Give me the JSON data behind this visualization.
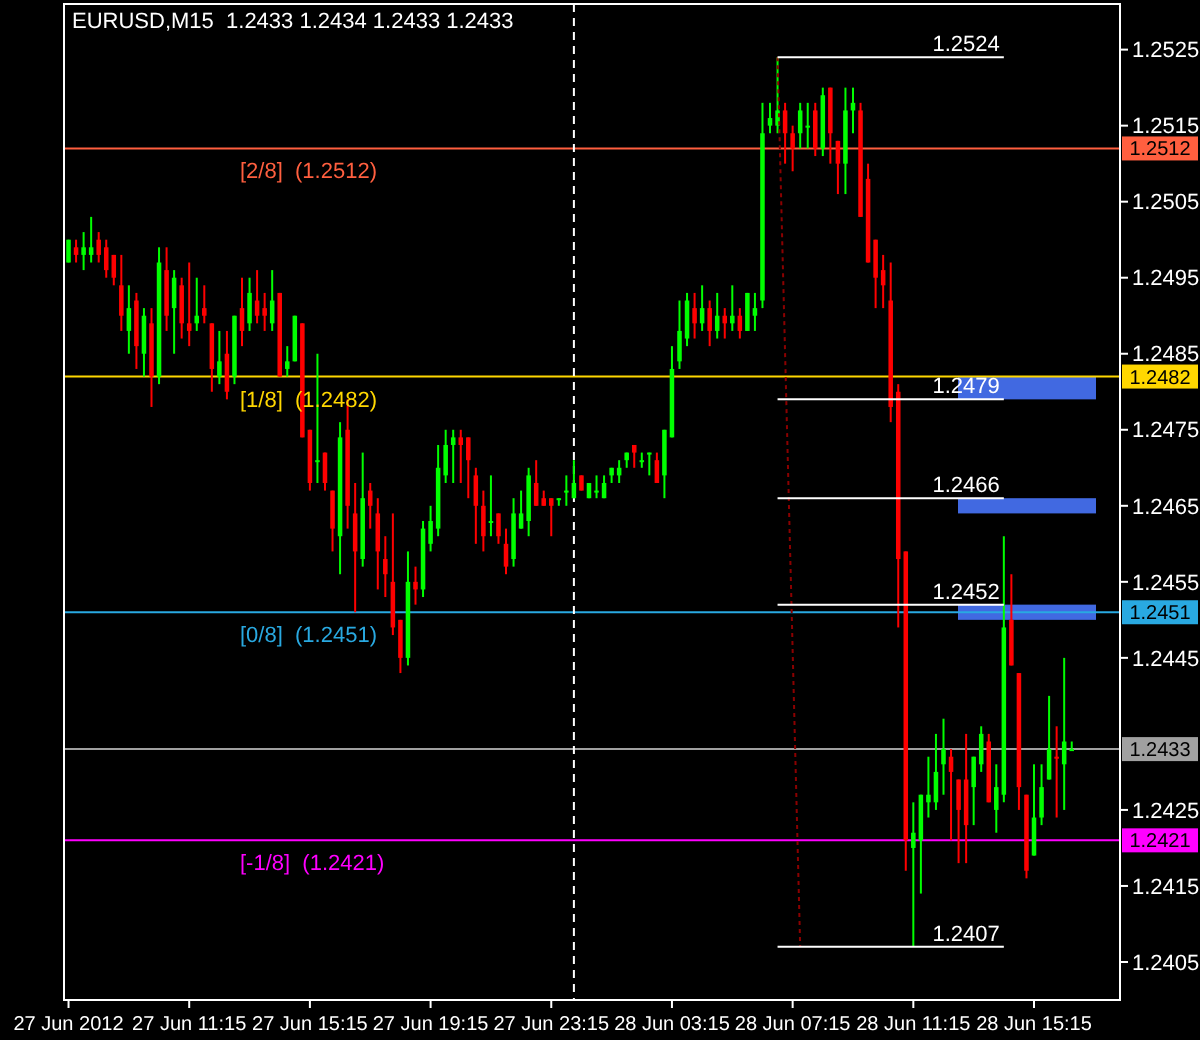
{
  "chart_data": {
    "type": "candlestick",
    "title": "EURUSD,M15  1.2433 1.2434 1.2433 1.2433",
    "x": [
      "2012-06-27T07:15",
      "2012-06-27T07:30",
      "2012-06-27T07:45",
      "2012-06-27T08:00",
      "2012-06-27T08:15",
      "2012-06-27T08:30",
      "2012-06-27T08:45",
      "2012-06-27T09:00",
      "2012-06-27T09:15",
      "2012-06-27T09:30",
      "2012-06-27T09:45",
      "2012-06-27T10:00",
      "2012-06-27T10:15",
      "2012-06-27T10:30",
      "2012-06-27T10:45",
      "2012-06-27T11:00",
      "2012-06-27T11:15",
      "2012-06-27T11:30",
      "2012-06-27T11:45",
      "2012-06-27T12:00",
      "2012-06-27T12:15",
      "2012-06-27T12:30",
      "2012-06-27T12:45",
      "2012-06-27T13:00",
      "2012-06-27T13:15",
      "2012-06-27T13:30",
      "2012-06-27T13:45",
      "2012-06-27T14:00",
      "2012-06-27T14:15",
      "2012-06-27T14:30",
      "2012-06-27T14:45",
      "2012-06-27T15:00",
      "2012-06-27T15:15",
      "2012-06-27T15:30",
      "2012-06-27T15:45",
      "2012-06-27T16:00",
      "2012-06-27T16:15",
      "2012-06-27T16:30",
      "2012-06-27T16:45",
      "2012-06-27T17:00",
      "2012-06-27T17:15",
      "2012-06-27T17:30",
      "2012-06-27T17:45",
      "2012-06-27T18:00",
      "2012-06-27T18:15",
      "2012-06-27T18:30",
      "2012-06-27T18:45",
      "2012-06-27T19:00",
      "2012-06-27T19:15",
      "2012-06-27T19:30",
      "2012-06-27T19:45",
      "2012-06-27T20:00",
      "2012-06-27T20:15",
      "2012-06-27T20:30",
      "2012-06-27T20:45",
      "2012-06-27T21:00",
      "2012-06-27T21:15",
      "2012-06-27T21:30",
      "2012-06-27T21:45",
      "2012-06-27T22:00",
      "2012-06-27T22:15",
      "2012-06-27T22:30",
      "2012-06-27T22:45",
      "2012-06-27T23:00",
      "2012-06-27T23:15",
      "2012-06-27T23:30",
      "2012-06-27T23:45",
      "2012-06-28T00:00",
      "2012-06-28T00:15",
      "2012-06-28T00:30",
      "2012-06-28T00:45",
      "2012-06-28T01:00",
      "2012-06-28T01:15",
      "2012-06-28T01:30",
      "2012-06-28T01:45",
      "2012-06-28T02:00",
      "2012-06-28T02:15",
      "2012-06-28T02:30",
      "2012-06-28T02:45",
      "2012-06-28T03:00",
      "2012-06-28T03:15",
      "2012-06-28T03:30",
      "2012-06-28T03:45",
      "2012-06-28T04:00",
      "2012-06-28T04:15",
      "2012-06-28T04:30",
      "2012-06-28T04:45",
      "2012-06-28T05:00",
      "2012-06-28T05:15",
      "2012-06-28T05:30",
      "2012-06-28T05:45",
      "2012-06-28T06:00",
      "2012-06-28T06:15",
      "2012-06-28T06:30",
      "2012-06-28T06:45",
      "2012-06-28T07:00",
      "2012-06-28T07:15",
      "2012-06-28T07:30",
      "2012-06-28T07:45",
      "2012-06-28T08:00",
      "2012-06-28T08:15",
      "2012-06-28T08:30",
      "2012-06-28T08:45",
      "2012-06-28T09:00",
      "2012-06-28T09:15",
      "2012-06-28T09:30",
      "2012-06-28T09:45",
      "2012-06-28T10:00",
      "2012-06-28T10:15",
      "2012-06-28T10:30",
      "2012-06-28T10:45",
      "2012-06-28T11:00",
      "2012-06-28T11:15",
      "2012-06-28T11:30",
      "2012-06-28T11:45",
      "2012-06-28T12:00",
      "2012-06-28T12:15",
      "2012-06-28T12:30",
      "2012-06-28T12:45",
      "2012-06-28T13:00",
      "2012-06-28T13:15",
      "2012-06-28T13:30",
      "2012-06-28T13:45",
      "2012-06-28T14:00",
      "2012-06-28T14:15",
      "2012-06-28T14:30",
      "2012-06-28T14:45",
      "2012-06-28T15:00",
      "2012-06-28T15:15",
      "2012-06-28T15:30",
      "2012-06-28T15:45",
      "2012-06-28T16:00",
      "2012-06-28T16:15",
      "2012-06-28T16:30"
    ],
    "ohlc": [
      [
        1.2497,
        1.25,
        1.2497,
        1.25
      ],
      [
        1.2499,
        1.25,
        1.2497,
        1.2498
      ],
      [
        1.2498,
        1.2501,
        1.2496,
        1.2499
      ],
      [
        1.2498,
        1.2503,
        1.2497,
        1.2499
      ],
      [
        1.25,
        1.2501,
        1.2497,
        1.2498
      ],
      [
        1.2499,
        1.25,
        1.2495,
        1.2496
      ],
      [
        1.2498,
        1.2498,
        1.2494,
        1.2495
      ],
      [
        1.2494,
        1.2498,
        1.2488,
        1.249
      ],
      [
        1.2488,
        1.2494,
        1.2485,
        1.2491
      ],
      [
        1.2492,
        1.2493,
        1.2483,
        1.2486
      ],
      [
        1.2485,
        1.2491,
        1.2482,
        1.249
      ],
      [
        1.2489,
        1.2491,
        1.2478,
        1.2482
      ],
      [
        1.2482,
        1.2499,
        1.2481,
        1.2497
      ],
      [
        1.2496,
        1.2499,
        1.2488,
        1.249
      ],
      [
        1.2491,
        1.2496,
        1.2485,
        1.2495
      ],
      [
        1.2494,
        1.2495,
        1.2487,
        1.2489
      ],
      [
        1.2489,
        1.2497,
        1.2486,
        1.2488
      ],
      [
        1.2489,
        1.2495,
        1.2488,
        1.249
      ],
      [
        1.2491,
        1.2494,
        1.2489,
        1.249
      ],
      [
        1.2489,
        1.2489,
        1.248,
        1.2483
      ],
      [
        1.2482,
        1.2488,
        1.2481,
        1.2484
      ],
      [
        1.2485,
        1.2488,
        1.2479,
        1.248
      ],
      [
        1.2482,
        1.249,
        1.2481,
        1.249
      ],
      [
        1.2491,
        1.2495,
        1.2486,
        1.2488
      ],
      [
        1.2489,
        1.2495,
        1.2488,
        1.2493
      ],
      [
        1.2492,
        1.2496,
        1.2489,
        1.249
      ],
      [
        1.2491,
        1.2493,
        1.2488,
        1.249
      ],
      [
        1.2489,
        1.2496,
        1.2488,
        1.2492
      ],
      [
        1.2493,
        1.2493,
        1.2482,
        1.2482
      ],
      [
        1.2483,
        1.2486,
        1.2482,
        1.2484
      ],
      [
        1.2484,
        1.249,
        1.2484,
        1.249
      ],
      [
        1.2489,
        1.2489,
        1.2474,
        1.2474
      ],
      [
        1.2475,
        1.2475,
        1.2467,
        1.2468
      ],
      [
        1.2471,
        1.2485,
        1.2468,
        1.2471
      ],
      [
        1.2472,
        1.2472,
        1.2467,
        1.2468
      ],
      [
        1.2467,
        1.2467,
        1.2459,
        1.2462
      ],
      [
        1.2461,
        1.2476,
        1.2456,
        1.2474
      ],
      [
        1.2475,
        1.2479,
        1.2462,
        1.2465
      ],
      [
        1.2464,
        1.2468,
        1.2451,
        1.2459
      ],
      [
        1.2458,
        1.2472,
        1.2457,
        1.2466
      ],
      [
        1.2467,
        1.2468,
        1.2462,
        1.2465
      ],
      [
        1.2464,
        1.2466,
        1.2454,
        1.2459
      ],
      [
        1.2458,
        1.2461,
        1.2453,
        1.2456
      ],
      [
        1.2455,
        1.2464,
        1.2448,
        1.2449
      ],
      [
        1.245,
        1.245,
        1.2443,
        1.2445
      ],
      [
        1.2445,
        1.2459,
        1.2444,
        1.2455
      ],
      [
        1.2455,
        1.2457,
        1.2452,
        1.2454
      ],
      [
        1.2454,
        1.2463,
        1.2453,
        1.2462
      ],
      [
        1.246,
        1.2465,
        1.2459,
        1.2463
      ],
      [
        1.2462,
        1.2473,
        1.2461,
        1.247
      ],
      [
        1.2469,
        1.2475,
        1.2468,
        1.2473
      ],
      [
        1.2473,
        1.2475,
        1.2468,
        1.2474
      ],
      [
        1.2474,
        1.2475,
        1.2468,
        1.2473
      ],
      [
        1.2474,
        1.2474,
        1.2466,
        1.2471
      ],
      [
        1.2469,
        1.247,
        1.246,
        1.2465
      ],
      [
        1.2465,
        1.2467,
        1.2459,
        1.2461
      ],
      [
        1.2463,
        1.2469,
        1.2461,
        1.2463
      ],
      [
        1.2464,
        1.2464,
        1.246,
        1.2461
      ],
      [
        1.246,
        1.2462,
        1.2456,
        1.2457
      ],
      [
        1.2458,
        1.2466,
        1.2457,
        1.2464
      ],
      [
        1.2462,
        1.2467,
        1.2462,
        1.2464
      ],
      [
        1.2463,
        1.247,
        1.2461,
        1.2469
      ],
      [
        1.2468,
        1.2471,
        1.2465,
        1.2465
      ],
      [
        1.2466,
        1.2467,
        1.2465,
        1.2465
      ],
      [
        1.2466,
        1.2466,
        1.2461,
        1.2465
      ],
      [
        1.2466,
        1.2466,
        1.2465,
        1.2466
      ],
      [
        1.2467,
        1.2469,
        1.2465,
        1.2467
      ],
      [
        1.2466,
        1.2471,
        1.2466,
        1.2468
      ],
      [
        1.2469,
        1.2469,
        1.2467,
        1.2467
      ],
      [
        1.2466,
        1.2468,
        1.2466,
        1.2468
      ],
      [
        1.2467,
        1.2469,
        1.2466,
        1.2467
      ],
      [
        1.2466,
        1.2469,
        1.2466,
        1.2468
      ],
      [
        1.2469,
        1.247,
        1.2468,
        1.247
      ],
      [
        1.2469,
        1.2471,
        1.2468,
        1.247
      ],
      [
        1.2471,
        1.2472,
        1.247,
        1.2472
      ],
      [
        1.2473,
        1.2473,
        1.247,
        1.2472
      ],
      [
        1.2471,
        1.2472,
        1.247,
        1.2471
      ],
      [
        1.2472,
        1.2472,
        1.2469,
        1.2472
      ],
      [
        1.2471,
        1.2472,
        1.2468,
        1.2468
      ],
      [
        1.2469,
        1.2475,
        1.2466,
        1.2475
      ],
      [
        1.2474,
        1.2486,
        1.2474,
        1.2483
      ],
      [
        1.2484,
        1.2492,
        1.2483,
        1.2488
      ],
      [
        1.2487,
        1.2493,
        1.2486,
        1.2492
      ],
      [
        1.2491,
        1.2493,
        1.2487,
        1.2489
      ],
      [
        1.2489,
        1.2494,
        1.2488,
        1.2491
      ],
      [
        1.2491,
        1.2492,
        1.2486,
        1.2488
      ],
      [
        1.2488,
        1.2493,
        1.2487,
        1.249
      ],
      [
        1.249,
        1.2491,
        1.2487,
        1.2489
      ],
      [
        1.2489,
        1.2494,
        1.2488,
        1.249
      ],
      [
        1.249,
        1.2491,
        1.2487,
        1.2488
      ],
      [
        1.2488,
        1.2493,
        1.2488,
        1.2493
      ],
      [
        1.249,
        1.2493,
        1.2488,
        1.2491
      ],
      [
        1.2492,
        1.2518,
        1.2491,
        1.2514
      ],
      [
        1.2515,
        1.2518,
        1.2514,
        1.2516
      ],
      [
        1.2515,
        1.2524,
        1.2514,
        1.2517
      ],
      [
        1.2517,
        1.2518,
        1.251,
        1.2514
      ],
      [
        1.2514,
        1.2515,
        1.2509,
        1.2512
      ],
      [
        1.2514,
        1.2518,
        1.2512,
        1.2517
      ],
      [
        1.2515,
        1.2518,
        1.2512,
        1.2515
      ],
      [
        1.2517,
        1.2518,
        1.2511,
        1.2512
      ],
      [
        1.2512,
        1.252,
        1.2511,
        1.2519
      ],
      [
        1.252,
        1.252,
        1.251,
        1.2514
      ],
      [
        1.2513,
        1.2513,
        1.2506,
        1.251
      ],
      [
        1.251,
        1.252,
        1.2506,
        1.2517
      ],
      [
        1.2517,
        1.252,
        1.2514,
        1.2518
      ],
      [
        1.2517,
        1.2518,
        1.2503,
        1.2503
      ],
      [
        1.2508,
        1.251,
        1.2497,
        1.2497
      ],
      [
        1.25,
        1.25,
        1.2491,
        1.2495
      ],
      [
        1.2496,
        1.2498,
        1.2491,
        1.2494
      ],
      [
        1.2492,
        1.2497,
        1.2476,
        1.2478
      ],
      [
        1.248,
        1.2481,
        1.2449,
        1.2458
      ],
      [
        1.2459,
        1.2459,
        1.2417,
        1.2421
      ],
      [
        1.242,
        1.2426,
        1.2407,
        1.2422
      ],
      [
        1.2421,
        1.2427,
        1.2414,
        1.2427
      ],
      [
        1.2426,
        1.2432,
        1.2424,
        1.2427
      ],
      [
        1.2426,
        1.2435,
        1.2425,
        1.243
      ],
      [
        1.2431,
        1.2437,
        1.2427,
        1.2433
      ],
      [
        1.2432,
        1.2433,
        1.2421,
        1.243
      ],
      [
        1.2429,
        1.2429,
        1.2418,
        1.2425
      ],
      [
        1.2429,
        1.2435,
        1.2418,
        1.2423
      ],
      [
        1.2428,
        1.2432,
        1.2423,
        1.2432
      ],
      [
        1.2431,
        1.2436,
        1.243,
        1.2435
      ],
      [
        1.2434,
        1.2435,
        1.2426,
        1.2426
      ],
      [
        1.2425,
        1.2431,
        1.2422,
        1.2428
      ],
      [
        1.2427,
        1.2461,
        1.2426,
        1.2449
      ],
      [
        1.245,
        1.2456,
        1.2444,
        1.2444
      ],
      [
        1.2443,
        1.2443,
        1.2425,
        1.2428
      ],
      [
        1.2427,
        1.2427,
        1.2416,
        1.2417
      ],
      [
        1.2419,
        1.2431,
        1.2419,
        1.2424
      ],
      [
        1.2424,
        1.2431,
        1.2423,
        1.2428
      ],
      [
        1.2429,
        1.244,
        1.2429,
        1.2433
      ],
      [
        1.2432,
        1.2436,
        1.2424,
        1.2432
      ],
      [
        1.2431,
        1.2445,
        1.2425,
        1.2434
      ],
      [
        1.2433,
        1.2434,
        1.2433,
        1.2433
      ]
    ],
    "colors": [
      "#00ff00",
      "#ff0000",
      "#00ff00",
      "#00ff00",
      "#ff0000",
      "#ff0000",
      "#ff0000",
      "#ff0000",
      "#00ff00",
      "#ff0000",
      "#00ff00",
      "#ff0000",
      "#00ff00",
      "#ff0000",
      "#00ff00",
      "#ff0000",
      "#ff0000",
      "#00ff00",
      "#ff0000",
      "#ff0000",
      "#00ff00",
      "#ff0000",
      "#00ff00",
      "#ff0000",
      "#00ff00",
      "#ff0000",
      "#ff0000",
      "#00ff00",
      "#ff0000",
      "#00ff00",
      "#00ff00",
      "#ff0000",
      "#ff0000",
      "#00ff00",
      "#ff0000",
      "#ff0000",
      "#00ff00",
      "#ff0000",
      "#ff0000",
      "#00ff00",
      "#ff0000",
      "#ff0000",
      "#ff0000",
      "#ff0000",
      "#ff0000",
      "#00ff00",
      "#ff0000",
      "#00ff00",
      "#00ff00",
      "#00ff00",
      "#00ff00",
      "#00ff00",
      "#ff0000",
      "#ff0000",
      "#ff0000",
      "#ff0000",
      "#00ff00",
      "#ff0000",
      "#ff0000",
      "#00ff00",
      "#00ff00",
      "#00ff00",
      "#ff0000",
      "#ff0000",
      "#ff0000",
      "#00ff00",
      "#00ff00",
      "#00ff00",
      "#ff0000",
      "#00ff00",
      "#00ff00",
      "#00ff00",
      "#00ff00",
      "#00ff00",
      "#00ff00",
      "#ff0000",
      "#00ff00",
      "#00ff00",
      "#ff0000",
      "#00ff00",
      "#00ff00",
      "#00ff00",
      "#00ff00",
      "#ff0000",
      "#00ff00",
      "#ff0000",
      "#00ff00",
      "#ff0000",
      "#00ff00",
      "#ff0000",
      "#00ff00",
      "#00ff00",
      "#00ff00",
      "#00ff00",
      "#00ff00",
      "#ff0000",
      "#ff0000",
      "#00ff00",
      "#00ff00",
      "#ff0000",
      "#00ff00",
      "#ff0000",
      "#ff0000",
      "#00ff00",
      "#00ff00",
      "#ff0000",
      "#ff0000",
      "#ff0000",
      "#ff0000",
      "#ff0000",
      "#ff0000",
      "#ff0000",
      "#00ff00",
      "#00ff00",
      "#00ff00",
      "#00ff00",
      "#00ff00",
      "#ff0000",
      "#ff0000",
      "#ff0000",
      "#00ff00",
      "#00ff00",
      "#ff0000",
      "#00ff00",
      "#00ff00",
      "#ff0000",
      "#ff0000",
      "#ff0000",
      "#00ff00",
      "#00ff00",
      "#00ff00",
      "#ff0000",
      "#00ff00",
      "#00ff00"
    ],
    "series": [
      {
        "type": "line",
        "color": "#8b0000",
        "line_style": "dotted",
        "x": [
          "2012-06-28T06:45",
          "2012-06-28T07:30"
        ],
        "values": [
          1.2524,
          1.2407
        ]
      },
      {
        "type": "line",
        "name": "1.2524",
        "color": "#ffffff",
        "x": [
          "2012-06-28T06:45",
          "2012-06-28T14:15"
        ],
        "values": [
          1.2524,
          1.2524
        ]
      },
      {
        "type": "line",
        "name": "1.2479",
        "color": "#ffffff",
        "x": [
          "2012-06-28T06:45",
          "2012-06-28T14:15"
        ],
        "values": [
          1.2479,
          1.2479
        ]
      },
      {
        "type": "line",
        "name": "1.2466",
        "color": "#ffffff",
        "x": [
          "2012-06-28T06:45",
          "2012-06-28T14:15"
        ],
        "values": [
          1.2466,
          1.2466
        ]
      },
      {
        "type": "line",
        "name": "1.2452",
        "color": "#ffffff",
        "x": [
          "2012-06-28T06:45",
          "2012-06-28T14:15"
        ],
        "values": [
          1.2452,
          1.2452
        ]
      },
      {
        "type": "line",
        "name": "1.2407",
        "color": "#ffffff",
        "x": [
          "2012-06-28T06:45",
          "2012-06-28T14:15"
        ],
        "values": [
          1.2407,
          1.2407
        ]
      }
    ],
    "xlim": [
      "2012-06-27T07:06",
      "2012-06-28T18:06"
    ],
    "ylim": [
      1.24,
      1.2531
    ],
    "xticks": [
      {
        "value": "2012-06-27T07:15",
        "label": "27 Jun 2012"
      },
      {
        "value": "2012-06-27T11:15",
        "label": "27 Jun 11:15"
      },
      {
        "value": "2012-06-27T15:15",
        "label": "27 Jun 15:15"
      },
      {
        "value": "2012-06-27T19:15",
        "label": "27 Jun 19:15"
      },
      {
        "value": "2012-06-27T23:15",
        "label": "27 Jun 23:15"
      },
      {
        "value": "2012-06-28T03:15",
        "label": "28 Jun 03:15"
      },
      {
        "value": "2012-06-28T07:15",
        "label": "28 Jun 07:15"
      },
      {
        "value": "2012-06-28T11:15",
        "label": "28 Jun 11:15"
      },
      {
        "value": "2012-06-28T15:15",
        "label": "28 Jun 15:15"
      }
    ],
    "yticks": [
      1.2405,
      1.2415,
      1.2425,
      1.2445,
      1.2455,
      1.2465,
      1.2475,
      1.2485,
      1.2495,
      1.2505,
      1.2515,
      1.2525
    ],
    "ref_lines": [
      {
        "axis": "y",
        "value": 1.2512,
        "label": "1.2512",
        "color": "#ff5f3f"
      },
      {
        "axis": "y",
        "value": 1.2482,
        "label": "1.2482",
        "color": "#ffd700"
      },
      {
        "axis": "y",
        "value": 1.2451,
        "label": "1.2451",
        "color": "#29a9e1"
      },
      {
        "axis": "y",
        "value": 1.2421,
        "label": "1.2421",
        "color": "#ff00ff"
      },
      {
        "axis": "y",
        "value": 1.2433,
        "label": "1.2433",
        "color": "#a0a0a0"
      },
      {
        "axis": "x",
        "value": "2012-06-28T00:00",
        "label": null,
        "color": "#ffffff",
        "line_style": "dashed"
      }
    ],
    "bands": [
      {
        "axis": "y",
        "from": 1.2479,
        "to": 1.2482,
        "color": "#4169e1"
      },
      {
        "axis": "y",
        "from": 1.2464,
        "to": 1.2466,
        "color": "#4169e1"
      },
      {
        "axis": "y",
        "from": 1.245,
        "to": 1.2452,
        "color": "#4169e1"
      }
    ],
    "annotations": [
      {
        "text": "[2/8]  (1.2512)",
        "y": 1.2512
      },
      {
        "text": "[1/8]  (1.2482)",
        "y": 1.2482
      },
      {
        "text": "[0/8]  (1.2451)",
        "y": 1.2451
      },
      {
        "text": "[-1/8]  (1.2421)",
        "y": 1.2421
      }
    ],
    "grid": false
  }
}
